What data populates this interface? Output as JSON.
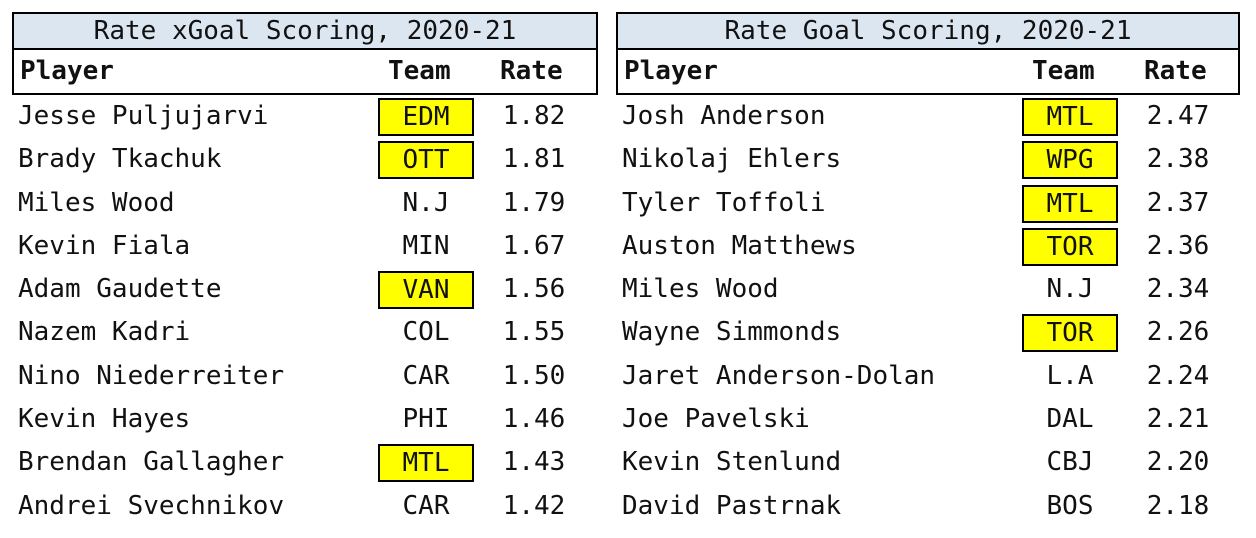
{
  "left": {
    "title": "Rate xGoal Scoring, 2020-21",
    "headers": {
      "player": "Player",
      "team": "Team",
      "rate": "Rate"
    },
    "rows": [
      {
        "player": "Jesse Puljujarvi",
        "team": "EDM",
        "rate": "1.82",
        "highlight": true
      },
      {
        "player": "Brady Tkachuk",
        "team": "OTT",
        "rate": "1.81",
        "highlight": true
      },
      {
        "player": "Miles Wood",
        "team": "N.J",
        "rate": "1.79",
        "highlight": false
      },
      {
        "player": "Kevin Fiala",
        "team": "MIN",
        "rate": "1.67",
        "highlight": false
      },
      {
        "player": "Adam Gaudette",
        "team": "VAN",
        "rate": "1.56",
        "highlight": true
      },
      {
        "player": "Nazem Kadri",
        "team": "COL",
        "rate": "1.55",
        "highlight": false
      },
      {
        "player": "Nino Niederreiter",
        "team": "CAR",
        "rate": "1.50",
        "highlight": false
      },
      {
        "player": "Kevin Hayes",
        "team": "PHI",
        "rate": "1.46",
        "highlight": false
      },
      {
        "player": "Brendan Gallagher",
        "team": "MTL",
        "rate": "1.43",
        "highlight": true
      },
      {
        "player": "Andrei Svechnikov",
        "team": "CAR",
        "rate": "1.42",
        "highlight": false
      }
    ]
  },
  "right": {
    "title": "Rate Goal Scoring, 2020-21",
    "headers": {
      "player": "Player",
      "team": "Team",
      "rate": "Rate"
    },
    "rows": [
      {
        "player": "Josh Anderson",
        "team": "MTL",
        "rate": "2.47",
        "highlight": true
      },
      {
        "player": "Nikolaj Ehlers",
        "team": "WPG",
        "rate": "2.38",
        "highlight": true
      },
      {
        "player": "Tyler Toffoli",
        "team": "MTL",
        "rate": "2.37",
        "highlight": true
      },
      {
        "player": "Auston Matthews",
        "team": "TOR",
        "rate": "2.36",
        "highlight": true
      },
      {
        "player": "Miles Wood",
        "team": "N.J",
        "rate": "2.34",
        "highlight": false
      },
      {
        "player": "Wayne Simmonds",
        "team": "TOR",
        "rate": "2.26",
        "highlight": true
      },
      {
        "player": "Jaret Anderson-Dolan",
        "team": "L.A",
        "rate": "2.24",
        "highlight": false
      },
      {
        "player": "Joe Pavelski",
        "team": "DAL",
        "rate": "2.21",
        "highlight": false
      },
      {
        "player": "Kevin Stenlund",
        "team": "CBJ",
        "rate": "2.20",
        "highlight": false
      },
      {
        "player": "David Pastrnak",
        "team": "BOS",
        "rate": "2.18",
        "highlight": false
      }
    ]
  },
  "colors": {
    "title_bg": "#dce6f1",
    "highlight": "#ffff00"
  }
}
